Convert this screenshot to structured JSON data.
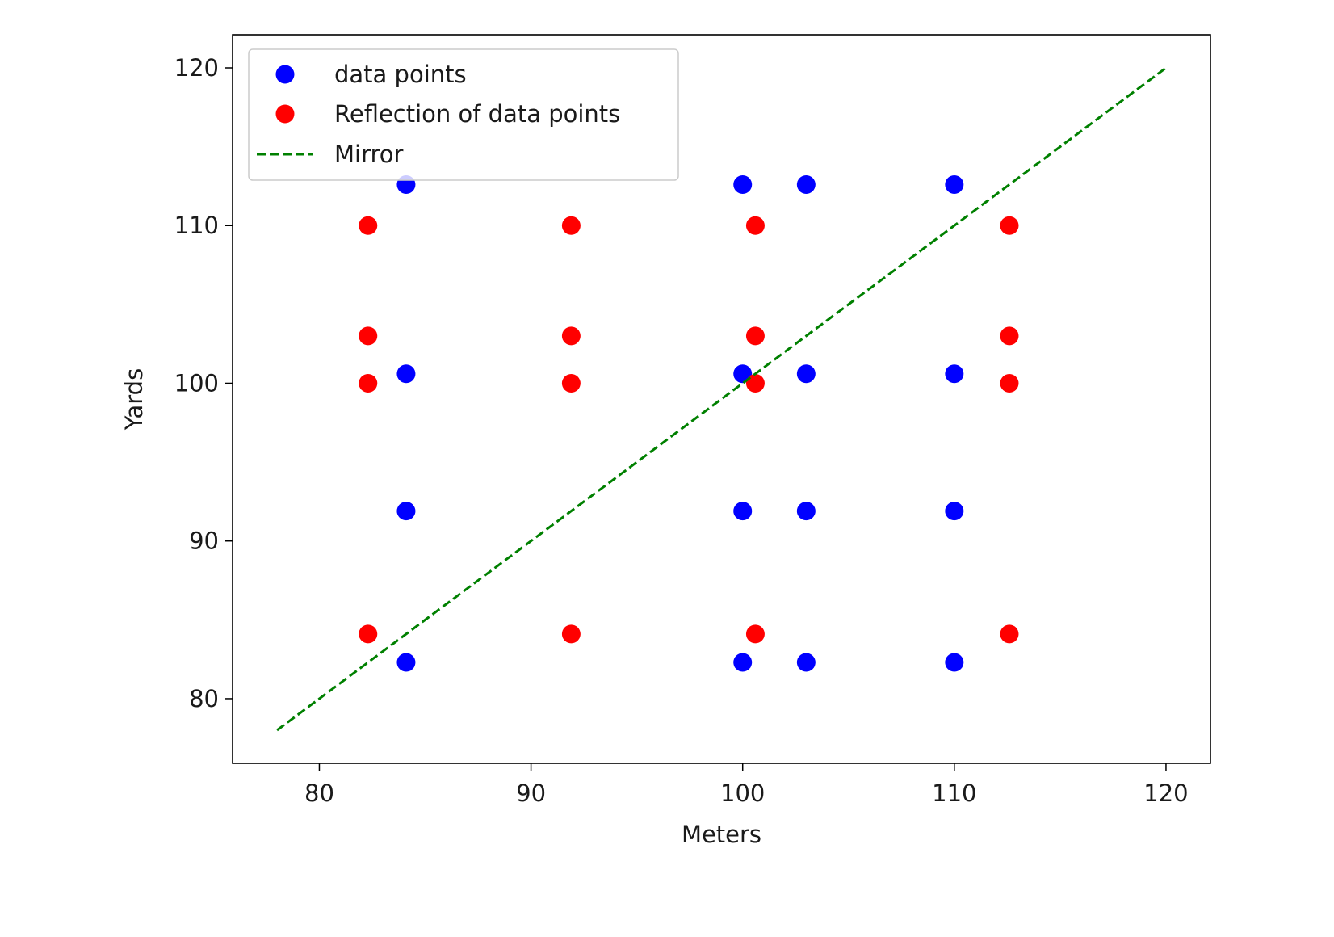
{
  "chart_data": {
    "type": "scatter",
    "title": "",
    "xlabel": "Meters",
    "ylabel": "Yards",
    "xlim": [
      75.9,
      122.1
    ],
    "ylim": [
      75.9,
      122.1
    ],
    "xticks": [
      80,
      90,
      100,
      110,
      120
    ],
    "yticks": [
      80,
      90,
      100,
      110,
      120
    ],
    "grid": false,
    "legend_position": "upper-left",
    "series": [
      {
        "name": "data points",
        "kind": "scatter",
        "color": "#0000ff",
        "points": [
          [
            84.1,
            112.6
          ],
          [
            100.0,
            112.6
          ],
          [
            103.0,
            112.6
          ],
          [
            110.0,
            112.6
          ],
          [
            84.1,
            100.6
          ],
          [
            100.0,
            100.6
          ],
          [
            103.0,
            100.6
          ],
          [
            110.0,
            100.6
          ],
          [
            84.1,
            91.9
          ],
          [
            100.0,
            91.9
          ],
          [
            103.0,
            91.9
          ],
          [
            110.0,
            91.9
          ],
          [
            84.1,
            82.3
          ],
          [
            100.0,
            82.3
          ],
          [
            103.0,
            82.3
          ],
          [
            110.0,
            82.3
          ]
        ]
      },
      {
        "name": "Reflection of data points",
        "kind": "scatter",
        "color": "#ff0000",
        "points": [
          [
            82.3,
            110.0
          ],
          [
            91.9,
            110.0
          ],
          [
            100.6,
            110.0
          ],
          [
            112.6,
            110.0
          ],
          [
            82.3,
            103.0
          ],
          [
            91.9,
            103.0
          ],
          [
            100.6,
            103.0
          ],
          [
            112.6,
            103.0
          ],
          [
            82.3,
            100.0
          ],
          [
            91.9,
            100.0
          ],
          [
            100.6,
            100.0
          ],
          [
            112.6,
            100.0
          ],
          [
            82.3,
            84.1
          ],
          [
            91.9,
            84.1
          ],
          [
            100.6,
            84.1
          ],
          [
            112.6,
            84.1
          ]
        ]
      },
      {
        "name": "Mirror",
        "kind": "line",
        "style": "dashed",
        "color": "#008000",
        "points": [
          [
            78.0,
            78.0
          ],
          [
            120.0,
            120.0
          ]
        ]
      }
    ]
  }
}
